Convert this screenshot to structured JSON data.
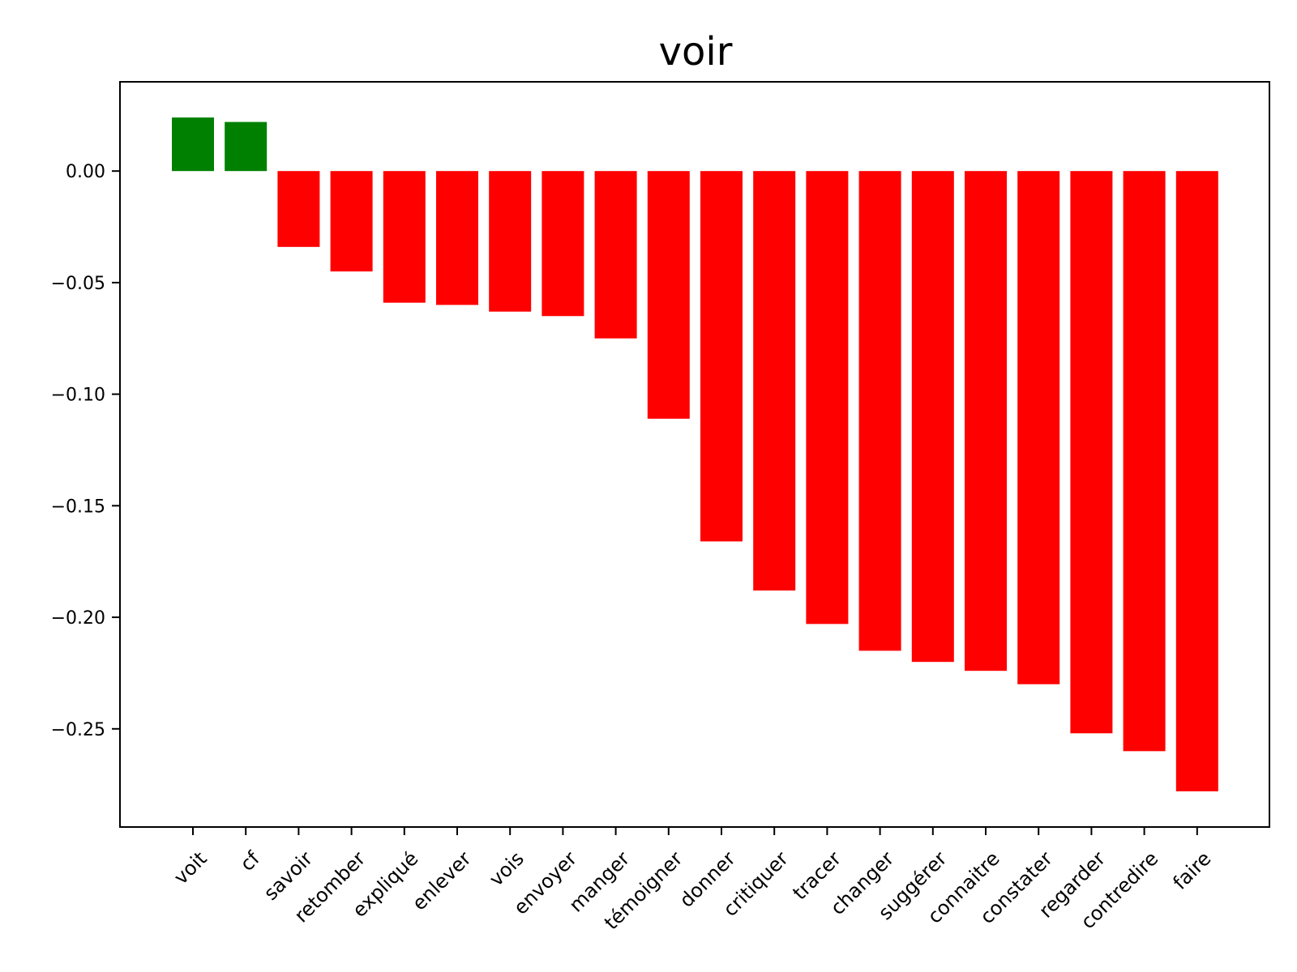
{
  "chart_data": {
    "type": "bar",
    "title": "voir",
    "xlabel": "",
    "ylabel": "",
    "categories": [
      "voit",
      "cf",
      "savoir",
      "retomber",
      "expliqué",
      "enlever",
      "vois",
      "envoyer",
      "manger",
      "témoigner",
      "donner",
      "critiquer",
      "tracer",
      "changer",
      "suggérer",
      "connaitre",
      "constater",
      "regarder",
      "contredire",
      "faire"
    ],
    "values": [
      0.024,
      0.022,
      -0.034,
      -0.045,
      -0.059,
      -0.06,
      -0.063,
      -0.065,
      -0.075,
      -0.111,
      -0.166,
      -0.188,
      -0.203,
      -0.215,
      -0.22,
      -0.224,
      -0.23,
      -0.252,
      -0.26,
      -0.278
    ],
    "colors": {
      "positive": "#008000",
      "negative": "#ff0000"
    },
    "ylim": [
      -0.294,
      0.04
    ],
    "yticks": [
      0.0,
      -0.05,
      -0.1,
      -0.15,
      -0.2,
      -0.25
    ],
    "ytick_labels": [
      "0.00",
      "−0.05",
      "−0.10",
      "−0.15",
      "−0.20",
      "−0.25"
    ],
    "grid": false,
    "legend": "none"
  }
}
